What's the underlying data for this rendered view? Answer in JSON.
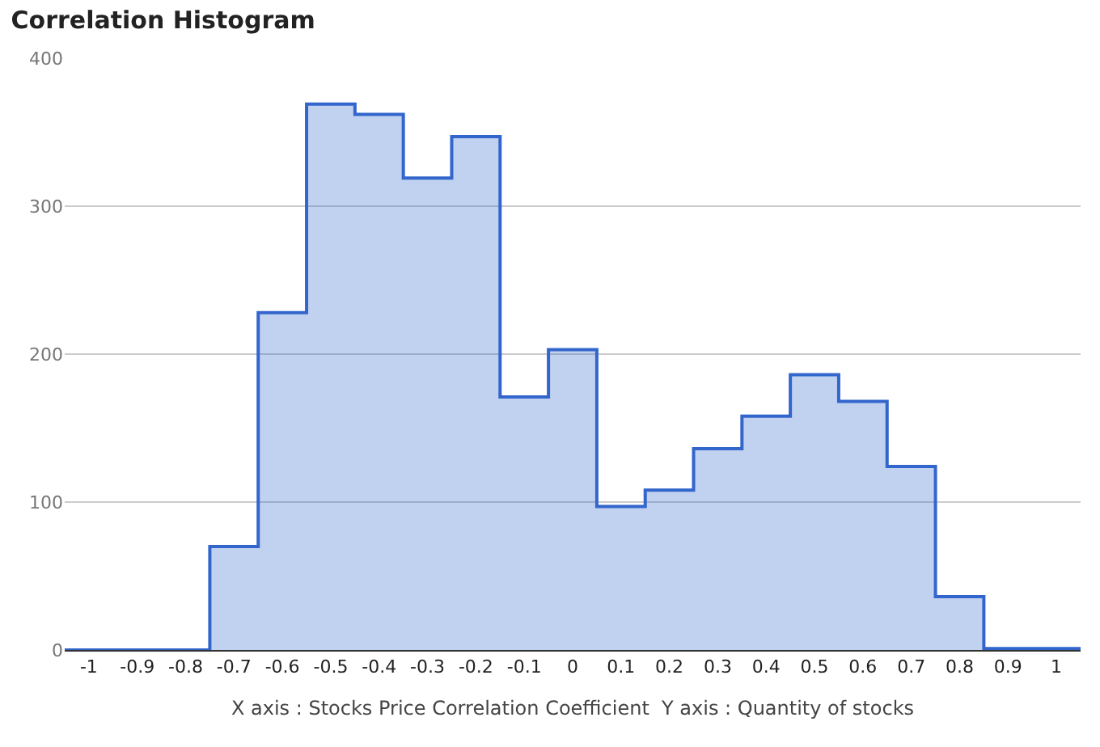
{
  "chart_data": {
    "type": "histogram",
    "title": "Correlation Histogram",
    "xlabel": "X axis : Stocks Price Correlation Coefficient  Y axis : Quantity of stocks",
    "bins": [
      -1.05,
      -0.95,
      -0.85,
      -0.75,
      -0.65,
      -0.55,
      -0.45,
      -0.35,
      -0.25,
      -0.15,
      -0.05,
      0.05,
      0.15,
      0.25,
      0.35,
      0.45,
      0.55,
      0.65,
      0.75,
      0.85,
      0.95,
      1.05
    ],
    "values": [
      0,
      0,
      0,
      70,
      228,
      369,
      362,
      319,
      347,
      171,
      203,
      97,
      108,
      136,
      158,
      186,
      168,
      124,
      36,
      1,
      1
    ],
    "color": "#3366cc",
    "xlim": [
      -1.05,
      1.05
    ],
    "xticks": [
      -1,
      -0.9,
      -0.8,
      -0.7,
      -0.6,
      -0.5,
      -0.4,
      -0.3,
      -0.2,
      -0.1,
      0,
      0.1,
      0.2,
      0.3,
      0.4,
      0.5,
      0.6,
      0.7,
      0.8,
      0.9,
      1
    ],
    "ylim": [
      0,
      400
    ],
    "yticks": [
      0,
      100,
      200,
      300,
      400
    ],
    "grid": "y"
  }
}
